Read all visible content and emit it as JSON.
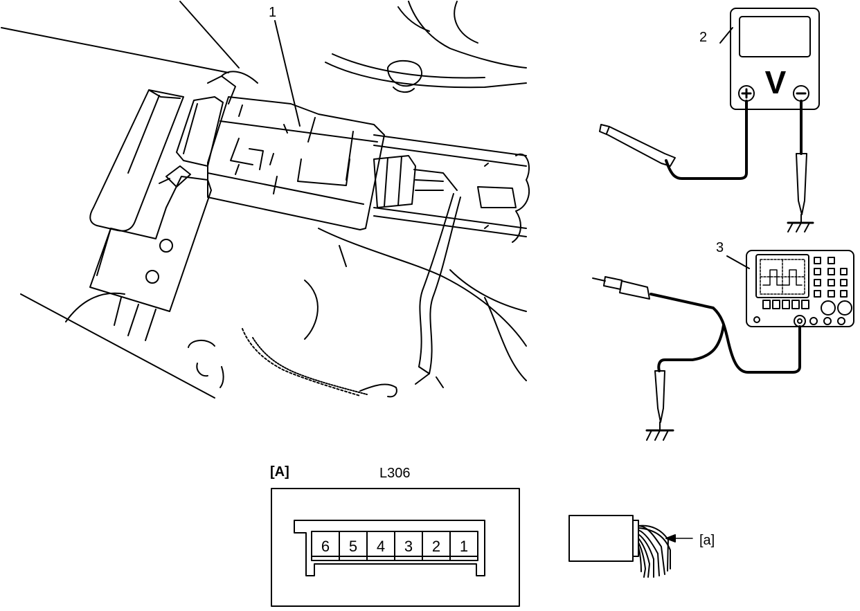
{
  "callouts": {
    "item1": "1",
    "item2": "2",
    "item3": "3",
    "view_label": "[A]",
    "connector_code": "L306",
    "harness_label": "[a]"
  },
  "meter": {
    "unit_symbol": "V"
  },
  "connector": {
    "pins": [
      "6",
      "5",
      "4",
      "3",
      "2",
      "1"
    ]
  }
}
